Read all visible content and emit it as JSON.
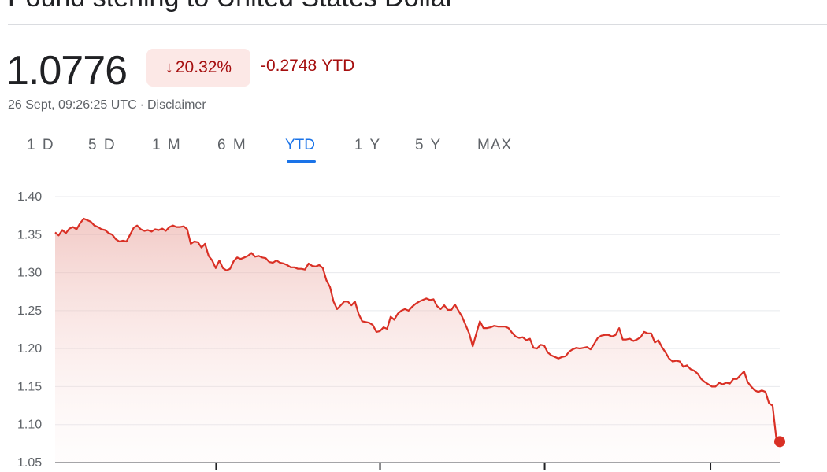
{
  "header": {
    "title": "Pound sterling to United States Dollar"
  },
  "quote": {
    "price": "1.0776",
    "change_arrow": "↓",
    "change_percent": "20.32%",
    "change_abs": "-0.2748",
    "change_period": "YTD",
    "timestamp": "26 Sept, 09:26:25 UTC",
    "separator": "·",
    "disclaimer": "Disclaimer"
  },
  "tabs": [
    {
      "label": "1 D"
    },
    {
      "label": "5 D"
    },
    {
      "label": "1 M"
    },
    {
      "label": "6 M"
    },
    {
      "label": "YTD",
      "active": true
    },
    {
      "label": "1 Y"
    },
    {
      "label": "5 Y"
    },
    {
      "label": "MAX"
    }
  ],
  "colors": {
    "line": "#d93025",
    "negative_text": "#a50e0e",
    "badge_bg": "#fce8e6",
    "active_tab": "#1a73e8"
  },
  "chart_data": {
    "type": "area",
    "title": "",
    "xlabel": "",
    "ylabel": "",
    "ylim": [
      1.05,
      1.4
    ],
    "yticks": [
      "1.40",
      "1.35",
      "1.30",
      "1.25",
      "1.20",
      "1.15",
      "1.10",
      "1.05"
    ],
    "grid": true,
    "series": [
      {
        "values": [
          1.353,
          1.349,
          1.356,
          1.352,
          1.358,
          1.36,
          1.357,
          1.365,
          1.371,
          1.369,
          1.367,
          1.362,
          1.36,
          1.357,
          1.356,
          1.352,
          1.35,
          1.344,
          1.341,
          1.342,
          1.341,
          1.35,
          1.359,
          1.362,
          1.357,
          1.355,
          1.356,
          1.354,
          1.357,
          1.356,
          1.358,
          1.355,
          1.36,
          1.362,
          1.36,
          1.36,
          1.361,
          1.357,
          1.338,
          1.341,
          1.34,
          1.333,
          1.338,
          1.322,
          1.316,
          1.306,
          1.316,
          1.306,
          1.303,
          1.305,
          1.315,
          1.32,
          1.318,
          1.32,
          1.322,
          1.326,
          1.321,
          1.322,
          1.32,
          1.319,
          1.314,
          1.313,
          1.316,
          1.313,
          1.312,
          1.31,
          1.307,
          1.307,
          1.305,
          1.305,
          1.304,
          1.312,
          1.309,
          1.308,
          1.31,
          1.306,
          1.29,
          1.281,
          1.262,
          1.252,
          1.257,
          1.262,
          1.262,
          1.257,
          1.262,
          1.246,
          1.236,
          1.235,
          1.234,
          1.231,
          1.222,
          1.223,
          1.228,
          1.226,
          1.242,
          1.238,
          1.246,
          1.25,
          1.252,
          1.25,
          1.255,
          1.259,
          1.262,
          1.264,
          1.266,
          1.264,
          1.265,
          1.256,
          1.252,
          1.257,
          1.251,
          1.251,
          1.258,
          1.25,
          1.242,
          1.231,
          1.22,
          1.203,
          1.22,
          1.236,
          1.227,
          1.227,
          1.228,
          1.23,
          1.229,
          1.229,
          1.229,
          1.227,
          1.221,
          1.216,
          1.214,
          1.215,
          1.211,
          1.213,
          1.201,
          1.2,
          1.205,
          1.204,
          1.195,
          1.191,
          1.189,
          1.187,
          1.189,
          1.19,
          1.196,
          1.199,
          1.201,
          1.2,
          1.201,
          1.202,
          1.199,
          1.206,
          1.214,
          1.217,
          1.218,
          1.218,
          1.216,
          1.218,
          1.227,
          1.212,
          1.212,
          1.213,
          1.21,
          1.212,
          1.215,
          1.222,
          1.22,
          1.22,
          1.208,
          1.211,
          1.202,
          1.195,
          1.187,
          1.183,
          1.184,
          1.183,
          1.176,
          1.178,
          1.173,
          1.171,
          1.167,
          1.16,
          1.156,
          1.153,
          1.15,
          1.15,
          1.155,
          1.153,
          1.155,
          1.154,
          1.16,
          1.16,
          1.165,
          1.17,
          1.156,
          1.15,
          1.145,
          1.143,
          1.145,
          1.143,
          1.128,
          1.125,
          1.083,
          1.0776
        ]
      }
    ]
  }
}
